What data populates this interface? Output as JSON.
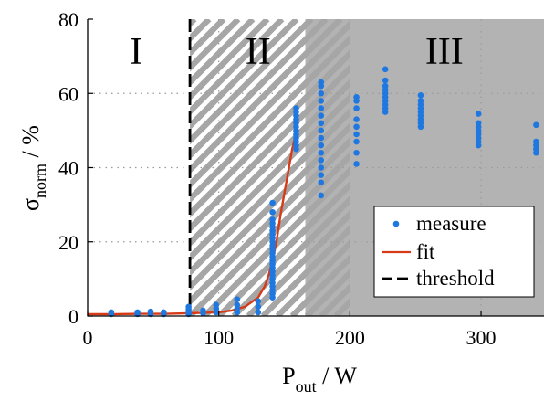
{
  "chart_data": {
    "type": "scatter",
    "xlabel": "P",
    "xlabel_sub": "out",
    "xlabel_unit": " / W",
    "ylabel": "σ",
    "ylabel_sub": "norm",
    "ylabel_unit": " / %",
    "xlim": [
      0,
      348
    ],
    "ylim": [
      0,
      80
    ],
    "xticks": [
      0,
      100,
      200,
      300
    ],
    "yticks": [
      0,
      20,
      40,
      60,
      80
    ],
    "grid": "dotted",
    "legend_position": "bottom-right",
    "regions": [
      {
        "label": "I",
        "x_start": 0,
        "x_end": 78,
        "fill": "none",
        "label_x": 37
      },
      {
        "label": "II",
        "x_start": 78,
        "x_end": 166,
        "fill": "hatched",
        "label_x": 130
      },
      {
        "label": "III",
        "x_start": 166,
        "x_end": 348,
        "fill": "#b3b3b3",
        "hatch_until": 200,
        "label_x": 272
      }
    ],
    "threshold": {
      "name": "threshold",
      "x": 78,
      "color": "#000000",
      "style": "dashed"
    },
    "fit": {
      "name": "fit",
      "color": "#d63a16",
      "points": [
        [
          0,
          0.5
        ],
        [
          20,
          0.5
        ],
        [
          40,
          0.6
        ],
        [
          60,
          0.6
        ],
        [
          80,
          0.8
        ],
        [
          100,
          1.0
        ],
        [
          110,
          1.5
        ],
        [
          120,
          2.5
        ],
        [
          130,
          5
        ],
        [
          135,
          8
        ],
        [
          138,
          11
        ],
        [
          141,
          15
        ],
        [
          144,
          20
        ],
        [
          147,
          27
        ],
        [
          150,
          33
        ],
        [
          153,
          39
        ],
        [
          156,
          45
        ],
        [
          158,
          48
        ]
      ]
    },
    "measure": {
      "name": "measure",
      "color": "#1f78e0",
      "groups": [
        {
          "x": 18,
          "y": [
            0.5,
            1.0
          ]
        },
        {
          "x": 38,
          "y": [
            0.5,
            1.0
          ]
        },
        {
          "x": 48,
          "y": [
            0.5,
            1.2
          ]
        },
        {
          "x": 58,
          "y": [
            0.5,
            1.0
          ]
        },
        {
          "x": 77,
          "y": [
            0.5,
            1.0,
            1.8,
            2.5
          ]
        },
        {
          "x": 88,
          "y": [
            0.8,
            1.5
          ]
        },
        {
          "x": 98,
          "y": [
            1.0,
            2.0,
            3.0
          ]
        },
        {
          "x": 114,
          "y": [
            1.0,
            2.0,
            3.0,
            4.5
          ]
        },
        {
          "x": 130,
          "y": [
            1.0,
            2.5,
            4.0
          ]
        },
        {
          "x": 141,
          "y": [
            5,
            6,
            7,
            8,
            9,
            10,
            11,
            12,
            13,
            14,
            15,
            16,
            17,
            18,
            19,
            20,
            21,
            22,
            23,
            24,
            25,
            26,
            28,
            30.5
          ]
        },
        {
          "x": 159,
          "y": [
            45,
            46,
            47,
            48,
            49,
            50,
            51,
            52,
            53,
            54,
            55,
            56
          ]
        },
        {
          "x": 178,
          "y": [
            32.5,
            36,
            38,
            40,
            42,
            44,
            46,
            48,
            50,
            52,
            54,
            56,
            58,
            60,
            62,
            63
          ]
        },
        {
          "x": 205,
          "y": [
            41,
            44,
            47,
            49,
            51,
            53,
            56,
            58,
            59
          ]
        },
        {
          "x": 227,
          "y": [
            55,
            56,
            57,
            58,
            59,
            60,
            61,
            62,
            63.5,
            66.5
          ]
        },
        {
          "x": 254,
          "y": [
            51,
            52,
            53,
            54,
            55,
            56,
            57,
            58,
            59.5
          ]
        },
        {
          "x": 298,
          "y": [
            46,
            47,
            48,
            49,
            50,
            51,
            52,
            54.5
          ]
        },
        {
          "x": 342,
          "y": [
            44,
            45,
            46,
            47,
            51.5
          ]
        }
      ]
    },
    "legend": [
      "measure",
      "fit",
      "threshold"
    ]
  }
}
